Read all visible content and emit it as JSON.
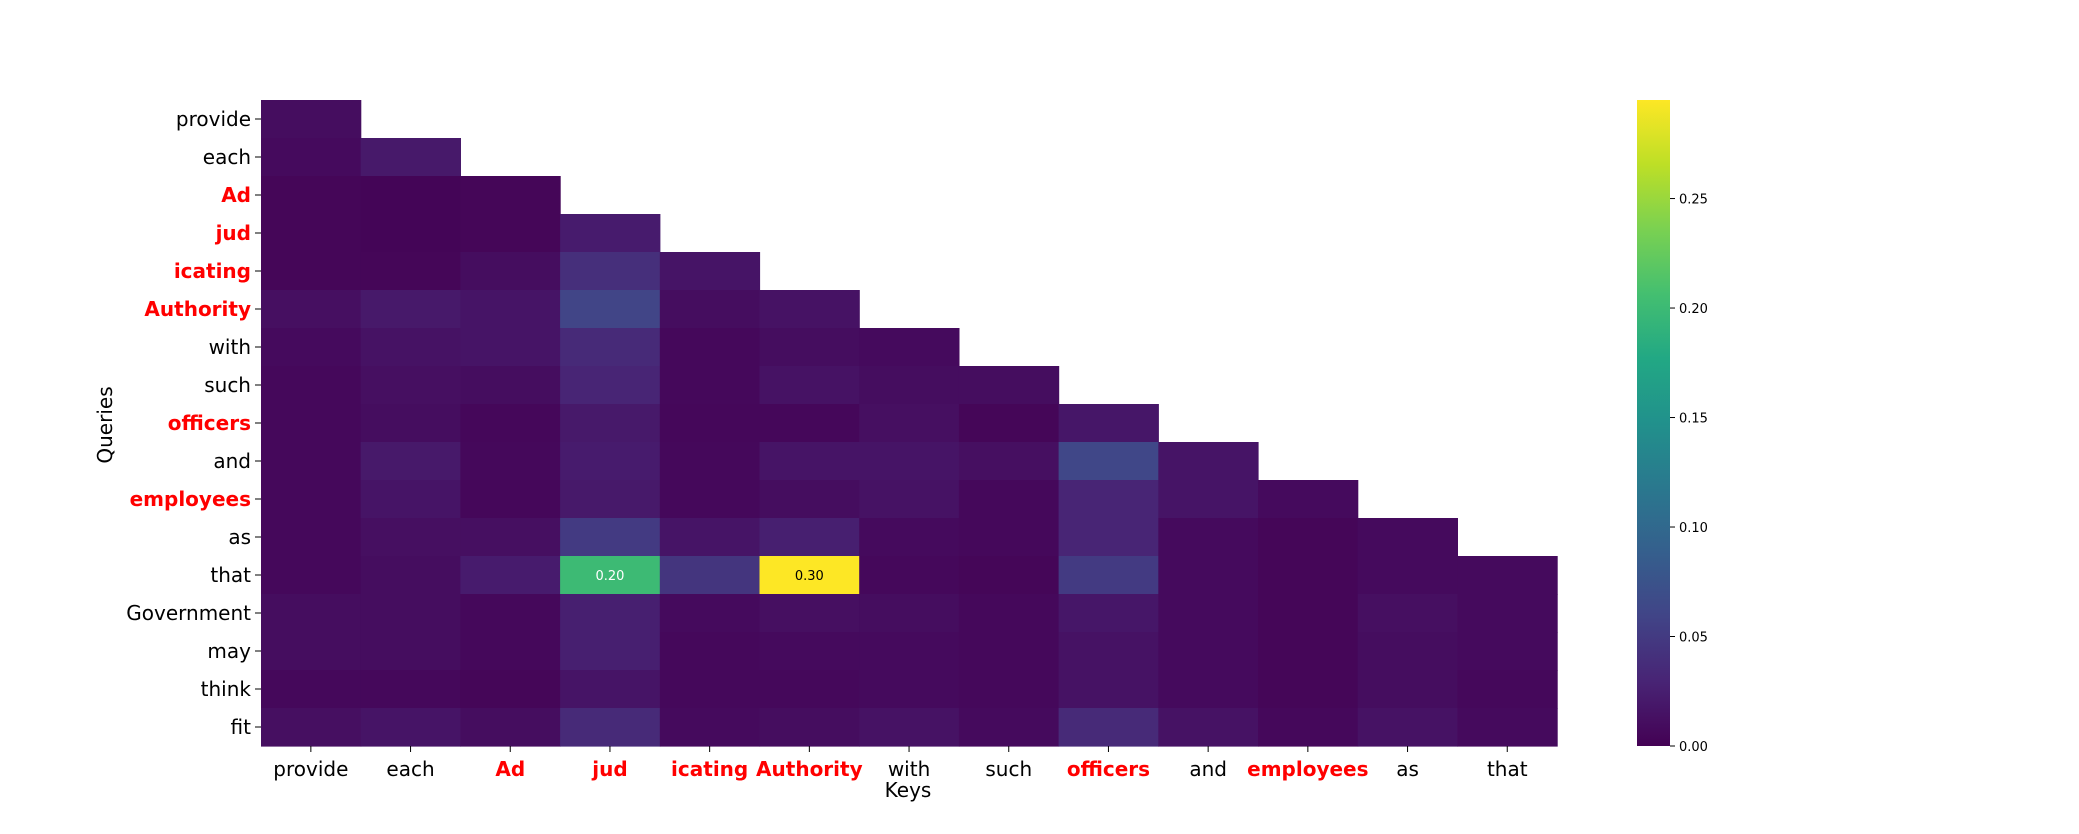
{
  "chart_data": {
    "type": "heatmap",
    "title": "",
    "xlabel": "Keys",
    "ylabel": "Queries",
    "colormap": "viridis",
    "mask": "upper-triangle",
    "x_labels": [
      "provide",
      "each",
      "Ad",
      "jud",
      "icating",
      "Authority",
      "with",
      "such",
      "officers",
      "and",
      "employees",
      "as",
      "that"
    ],
    "y_labels": [
      "provide",
      "each",
      "Ad",
      "jud",
      "icating",
      "Authority",
      "with",
      "such",
      "officers",
      "and",
      "employees",
      "as",
      "that",
      "Government",
      "may",
      "think",
      "fit"
    ],
    "highlighted_labels": [
      "Ad",
      "jud",
      "icating",
      "Authority",
      "officers",
      "employees"
    ],
    "highlight_color": "#ff0000",
    "values": [
      [
        0.01,
        null,
        null,
        null,
        null,
        null,
        null,
        null,
        null,
        null,
        null,
        null,
        null
      ],
      [
        0.008,
        0.02,
        null,
        null,
        null,
        null,
        null,
        null,
        null,
        null,
        null,
        null,
        null
      ],
      [
        0.004,
        0.003,
        0.004,
        null,
        null,
        null,
        null,
        null,
        null,
        null,
        null,
        null,
        null
      ],
      [
        0.004,
        0.003,
        0.004,
        0.022,
        null,
        null,
        null,
        null,
        null,
        null,
        null,
        null,
        null
      ],
      [
        0.004,
        0.004,
        0.01,
        0.04,
        0.016,
        null,
        null,
        null,
        null,
        null,
        null,
        null,
        null
      ],
      [
        0.012,
        0.02,
        0.016,
        0.06,
        0.01,
        0.014,
        null,
        null,
        null,
        null,
        null,
        null,
        null
      ],
      [
        0.008,
        0.014,
        0.016,
        0.035,
        0.006,
        0.01,
        0.008,
        null,
        null,
        null,
        null,
        null,
        null
      ],
      [
        0.006,
        0.012,
        0.01,
        0.03,
        0.006,
        0.014,
        0.01,
        0.01,
        null,
        null,
        null,
        null,
        null
      ],
      [
        0.006,
        0.01,
        0.005,
        0.02,
        0.005,
        0.005,
        0.012,
        0.004,
        0.018,
        null,
        null,
        null,
        null
      ],
      [
        0.006,
        0.02,
        0.006,
        0.022,
        0.006,
        0.016,
        0.016,
        0.012,
        0.062,
        0.016,
        null,
        null,
        null
      ],
      [
        0.006,
        0.016,
        0.005,
        0.02,
        0.006,
        0.01,
        0.014,
        0.006,
        0.03,
        0.016,
        0.008,
        null,
        null
      ],
      [
        0.006,
        0.012,
        0.012,
        0.05,
        0.016,
        0.025,
        0.008,
        0.006,
        0.03,
        0.008,
        0.004,
        0.008,
        null
      ],
      [
        0.006,
        0.01,
        0.022,
        0.2,
        0.045,
        0.3,
        0.006,
        0.004,
        0.05,
        0.008,
        0.004,
        0.008,
        0.008
      ],
      [
        0.01,
        0.01,
        0.006,
        0.025,
        0.008,
        0.012,
        0.01,
        0.006,
        0.018,
        0.008,
        0.004,
        0.012,
        0.008
      ],
      [
        0.01,
        0.01,
        0.006,
        0.025,
        0.006,
        0.008,
        0.008,
        0.006,
        0.014,
        0.008,
        0.004,
        0.01,
        0.008
      ],
      [
        0.006,
        0.006,
        0.004,
        0.016,
        0.006,
        0.006,
        0.008,
        0.006,
        0.014,
        0.008,
        0.004,
        0.01,
        0.006
      ],
      [
        0.012,
        0.016,
        0.01,
        0.035,
        0.008,
        0.01,
        0.014,
        0.008,
        0.035,
        0.014,
        0.006,
        0.014,
        0.008
      ]
    ],
    "annotations": [
      {
        "row": 12,
        "col": 3,
        "text": "0.20",
        "color": "#ffffff"
      },
      {
        "row": 12,
        "col": 5,
        "text": "0.30",
        "color": "#000000"
      }
    ],
    "colorbar": {
      "range": [
        0.0,
        0.295
      ],
      "ticks": [
        0.0,
        0.05,
        0.1,
        0.15,
        0.2,
        0.25
      ],
      "tick_labels": [
        "0.00",
        "0.05",
        "0.10",
        "0.15",
        "0.20",
        "0.25"
      ]
    }
  }
}
